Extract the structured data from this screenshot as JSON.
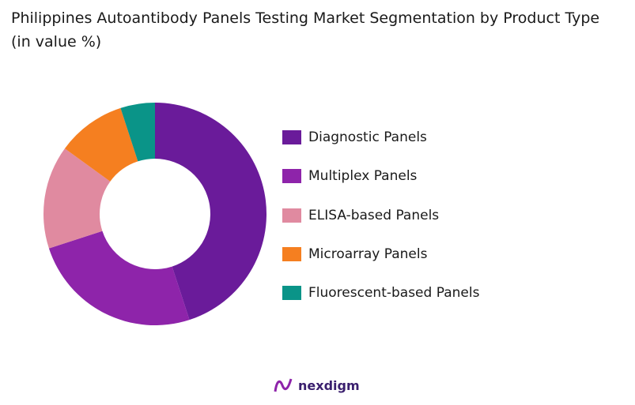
{
  "chart_data": {
    "type": "pie",
    "donut": true,
    "title": "Philippines Autoantibody Panels Testing Market Segmentation by Product Type (in value %)",
    "categories": [
      "Diagnostic Panels",
      "Multiplex Panels",
      "ELISA-based Panels",
      "Microarray Panels",
      "Fluorescent-based Panels"
    ],
    "values": [
      45,
      25,
      15,
      10,
      5
    ],
    "colors": [
      "#6a1b9a",
      "#8e24aa",
      "#e08aa0",
      "#f57f20",
      "#0a9488"
    ],
    "legend_position": "right"
  },
  "brand": {
    "logo_text": "nexdigm"
  }
}
